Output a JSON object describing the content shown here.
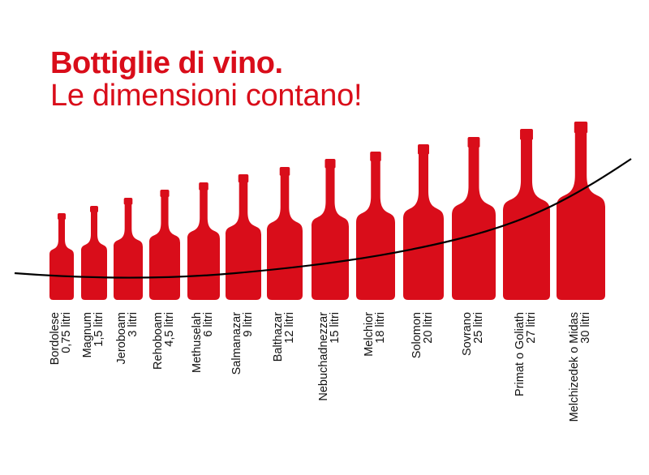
{
  "colors": {
    "accent": "#d90d1a",
    "curve": "#000000",
    "text": "#111111"
  },
  "chart_data": {
    "type": "bar",
    "title": "Bottiglie di vino.",
    "subtitle": "Le dimensioni contano!",
    "unit": "litri",
    "categories": [
      "Bordolese",
      "Magnum",
      "Jeroboam",
      "Rehoboam",
      "Methuselah",
      "Salmanazar",
      "Balthazar",
      "Nebuchadnezzar",
      "Melchior",
      "Solomon",
      "Sovrano",
      "Primat o Goliath",
      "Melchizedek o Midas"
    ],
    "value_labels": [
      "0,75 litri",
      "1,5 litri",
      "3 litri",
      "4,5 litri",
      "6 litri",
      "9 litri",
      "12 litri",
      "15 litri",
      "18 litri",
      "20 litri",
      "25 litri",
      "27 litri",
      "30 litri"
    ],
    "values": [
      0.75,
      1.5,
      3,
      4.5,
      6,
      9,
      12,
      15,
      18,
      20,
      25,
      27,
      30
    ],
    "trend_line": true,
    "grid": false,
    "legend": "none"
  }
}
